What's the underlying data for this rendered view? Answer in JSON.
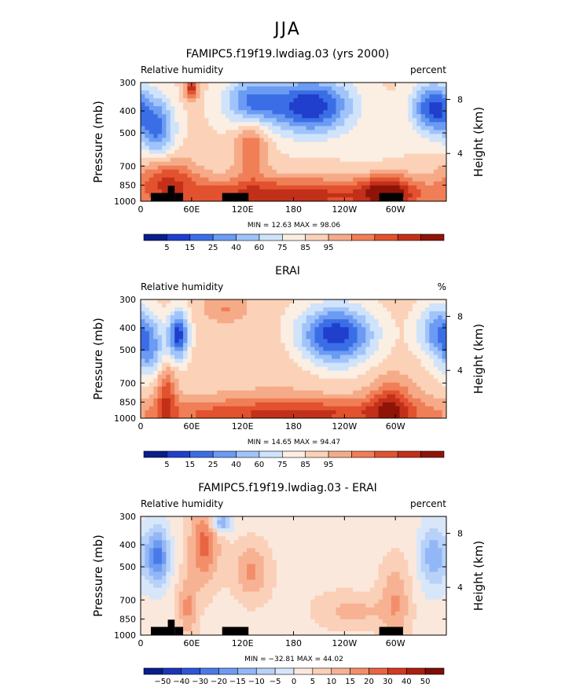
{
  "figure_title": "JJA",
  "chart_data": [
    {
      "type": "heatmap",
      "title": "FAMIPC5.f19f19.lwdiag.03 (yrs 2000)",
      "left_label": "Relative humidity",
      "units": "percent",
      "ylabel": "Pressure (mb)",
      "right_label": "Height (km)",
      "y_ticks": [
        "300",
        "400",
        "500",
        "700",
        "850",
        "1000"
      ],
      "right_ticks": [
        "8",
        "4"
      ],
      "x_ticks": [
        "0",
        "60E",
        "120E",
        "180",
        "120W",
        "60W"
      ],
      "stats": "MIN =  12.63   MAX =  98.06",
      "colorbar_labels": [
        "5",
        "15",
        "25",
        "40",
        "60",
        "75",
        "85",
        "95"
      ],
      "colors": [
        "#0a1d8c",
        "#1f3fcc",
        "#3b6ee6",
        "#6b9bf2",
        "#a0c4fa",
        "#cfe3fb",
        "#fbeee3",
        "#fbd2b8",
        "#f6ab88",
        "#f07e57",
        "#e2522f",
        "#c2301a",
        "#8e1408"
      ],
      "value_range": [
        0,
        100
      ]
    },
    {
      "type": "heatmap",
      "title": "ERAI",
      "left_label": "Relative humidity",
      "units": "%",
      "ylabel": "Pressure (mb)",
      "right_label": "Height (km)",
      "y_ticks": [
        "300",
        "400",
        "500",
        "700",
        "850",
        "1000"
      ],
      "right_ticks": [
        "8",
        "4"
      ],
      "x_ticks": [
        "0",
        "60E",
        "120E",
        "180",
        "120W",
        "60W"
      ],
      "stats": "MIN =  14.65   MAX =  94.47",
      "colorbar_labels": [
        "5",
        "15",
        "25",
        "40",
        "60",
        "75",
        "85",
        "95"
      ],
      "colors": [
        "#0a1d8c",
        "#1f3fcc",
        "#3b6ee6",
        "#6b9bf2",
        "#a0c4fa",
        "#cfe3fb",
        "#fbeee3",
        "#fbd2b8",
        "#f6ab88",
        "#f07e57",
        "#e2522f",
        "#c2301a",
        "#8e1408"
      ],
      "value_range": [
        0,
        100
      ]
    },
    {
      "type": "heatmap",
      "title": "FAMIPC5.f19f19.lwdiag.03 - ERAI",
      "left_label": "Relative humidity",
      "units": "percent",
      "ylabel": "Pressure (mb)",
      "right_label": "Height (km)",
      "y_ticks": [
        "300",
        "400",
        "500",
        "700",
        "850",
        "1000"
      ],
      "right_ticks": [
        "8",
        "4"
      ],
      "x_ticks": [
        "0",
        "60E",
        "120E",
        "180",
        "120W",
        "60W"
      ],
      "stats": "MIN = −32.81   MAX =  44.02",
      "colorbar_labels": [
        "−50",
        "−40",
        "−30",
        "−20",
        "−15",
        "−10",
        "−5",
        "0",
        "5",
        "10",
        "15",
        "20",
        "30",
        "40",
        "50"
      ],
      "colors": [
        "#0a1d8c",
        "#1a36b8",
        "#2c55d8",
        "#4a7ae8",
        "#6e9bf2",
        "#93b7f6",
        "#b8d1f8",
        "#d8e6f9",
        "#fbe8dc",
        "#fbd0b8",
        "#f7b293",
        "#f28f6a",
        "#e86443",
        "#d23a22",
        "#aa1f10",
        "#7d0e06"
      ],
      "value_range": [
        -55,
        55
      ]
    }
  ]
}
